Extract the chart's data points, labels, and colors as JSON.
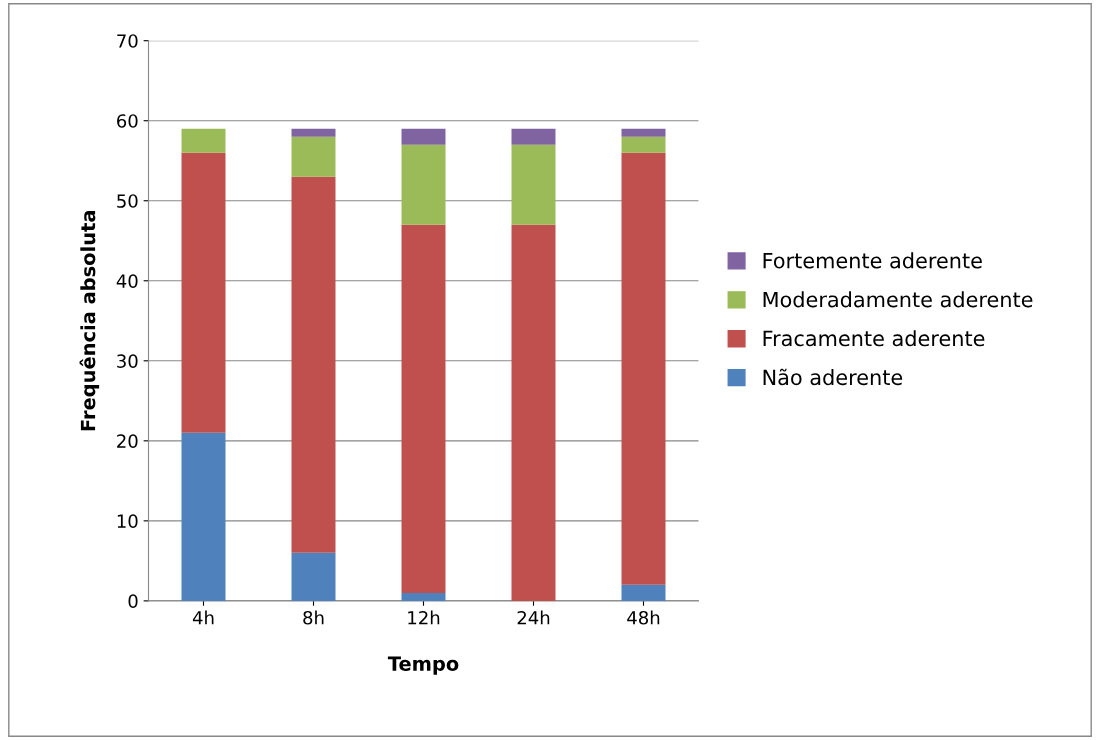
{
  "chart_data": {
    "type": "bar",
    "stacked": true,
    "xlabel": "Tempo",
    "ylabel": "Frequência absoluta",
    "categories": [
      "4h",
      "8h",
      "12h",
      "24h",
      "48h"
    ],
    "series": [
      {
        "name": "Não aderente",
        "color": "#4f81bd",
        "values": [
          21,
          6,
          1,
          0,
          2
        ]
      },
      {
        "name": "Fracamente aderente",
        "color": "#c0504d",
        "values": [
          35,
          47,
          46,
          47,
          54
        ]
      },
      {
        "name": "Moderadamente aderente",
        "color": "#9bbb59",
        "values": [
          3,
          5,
          10,
          10,
          2
        ]
      },
      {
        "name": "Fortemente aderente",
        "color": "#8064a2",
        "values": [
          0,
          1,
          2,
          2,
          1
        ]
      }
    ],
    "ylim": [
      0,
      70
    ],
    "yticks": [
      0,
      10,
      20,
      30,
      40,
      50,
      60,
      70
    ],
    "grid": "y",
    "legend": "right"
  }
}
